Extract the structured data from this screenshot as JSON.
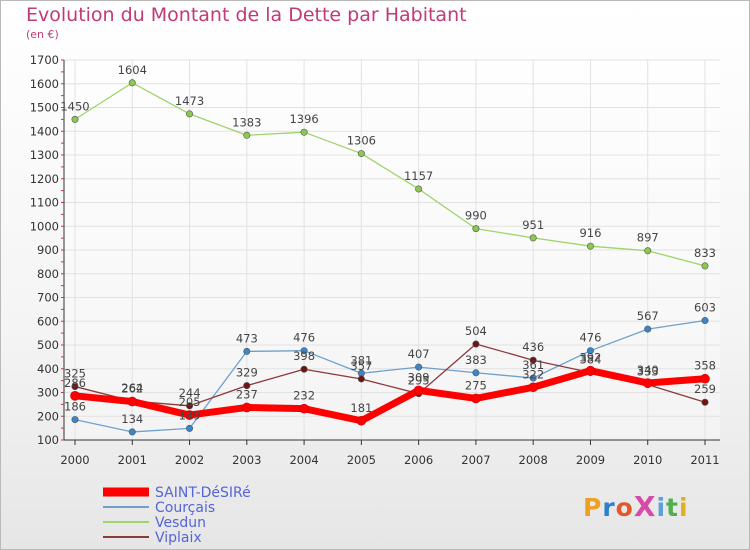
{
  "title": "Evolution du Montant de la Dette par Habitant",
  "subtitle": "(en €)",
  "logo": "ProXiti",
  "chart_data": {
    "type": "line",
    "x": [
      "2000",
      "2001",
      "2002",
      "2003",
      "2004",
      "2005",
      "2006",
      "2007",
      "2008",
      "2009",
      "2010",
      "2011"
    ],
    "ylim": [
      100,
      1700
    ],
    "yticks": [
      100,
      200,
      300,
      400,
      500,
      600,
      700,
      800,
      900,
      1000,
      1100,
      1200,
      1300,
      1400,
      1500,
      1600,
      1700
    ],
    "grid": true,
    "legend_position": "bottom-left",
    "series": [
      {
        "name": "SAINT-DéSIRé",
        "color": "#ff0000",
        "marker": "#ff0000",
        "width": 7,
        "values": [
          286,
          262,
          205,
          237,
          232,
          181,
          309,
          275,
          322,
          392,
          340,
          358
        ],
        "labels": [
          "286",
          "262",
          "205",
          "237",
          "232",
          "181",
          "309",
          "275",
          "322",
          "392",
          "340",
          "358"
        ]
      },
      {
        "name": "Courçais",
        "color": "#6fa0cc",
        "marker": "#3a86c8",
        "width": 1.3,
        "values": [
          186,
          134,
          149,
          473,
          476,
          381,
          407,
          383,
          361,
          476,
          567,
          603
        ],
        "labels": [
          "186",
          "134",
          "149",
          "473",
          "476",
          "381",
          "407",
          "383",
          "361",
          "476",
          "567",
          "603"
        ]
      },
      {
        "name": "Vesdun",
        "color": "#9ed46b",
        "marker": "#8ac850",
        "width": 1.3,
        "values": [
          1450,
          1604,
          1473,
          1383,
          1396,
          1306,
          1157,
          990,
          951,
          916,
          897,
          833
        ],
        "labels": [
          "1450",
          "1604",
          "1473",
          "1383",
          "1396",
          "1306",
          "1157",
          "990",
          "951",
          "916",
          "897",
          "833"
        ]
      },
      {
        "name": "Viplaix",
        "color": "#8b3a3a",
        "marker": "#6e1414",
        "width": 1.3,
        "values": [
          325,
          264,
          244,
          329,
          398,
          357,
          295,
          504,
          436,
          384,
          333,
          259
        ],
        "labels": [
          "325",
          "264",
          "244",
          "329",
          "398",
          "357",
          "295",
          "504",
          "436",
          "384",
          "333",
          "259"
        ]
      }
    ]
  }
}
